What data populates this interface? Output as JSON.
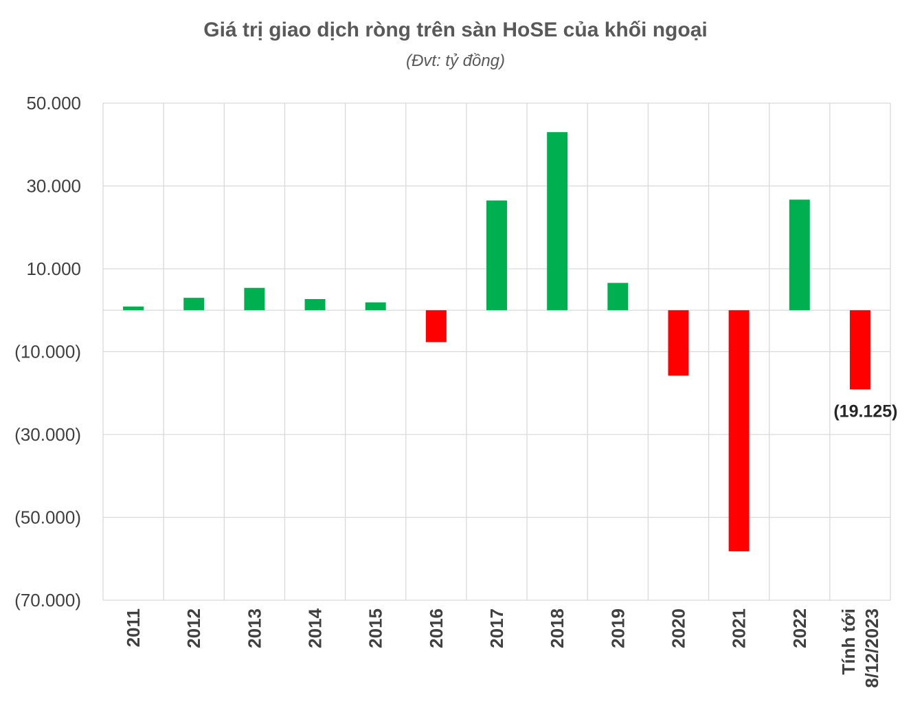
{
  "chart_data": {
    "type": "bar",
    "title": "Giá trị giao dịch ròng trên sàn HoSE của khối ngoại",
    "subtitle": "(Đvt: tỷ đồng)",
    "categories": [
      "2011",
      "2012",
      "2013",
      "2014",
      "2015",
      "2016",
      "2017",
      "2018",
      "2019",
      "2020",
      "2021",
      "2022",
      "Tính tới 8/12/2023"
    ],
    "category_lines": [
      [
        "2011"
      ],
      [
        "2012"
      ],
      [
        "2013"
      ],
      [
        "2014"
      ],
      [
        "2015"
      ],
      [
        "2016"
      ],
      [
        "2017"
      ],
      [
        "2018"
      ],
      [
        "2019"
      ],
      [
        "2020"
      ],
      [
        "2021"
      ],
      [
        "2022"
      ],
      [
        "Tính tới",
        "8/12/2023"
      ]
    ],
    "values": [
      900,
      3000,
      5400,
      2700,
      1900,
      -7700,
      26500,
      43000,
      6600,
      -15800,
      -58200,
      26700,
      -19125
    ],
    "ylim": [
      -70000,
      50000
    ],
    "yticks": [
      50000,
      30000,
      10000,
      -10000,
      -30000,
      -50000,
      -70000
    ],
    "ytick_labels": [
      "50.000",
      "30.000",
      "10.000",
      "(10.000)",
      "(30.000)",
      "(50.000)",
      "(70.000)"
    ],
    "data_labels": [
      {
        "index": 12,
        "text": "(19.125)"
      }
    ],
    "colors": {
      "positive": "#00b050",
      "negative": "#ff0000",
      "grid": "#d9d9d9"
    },
    "grid": true,
    "legend": "none"
  }
}
